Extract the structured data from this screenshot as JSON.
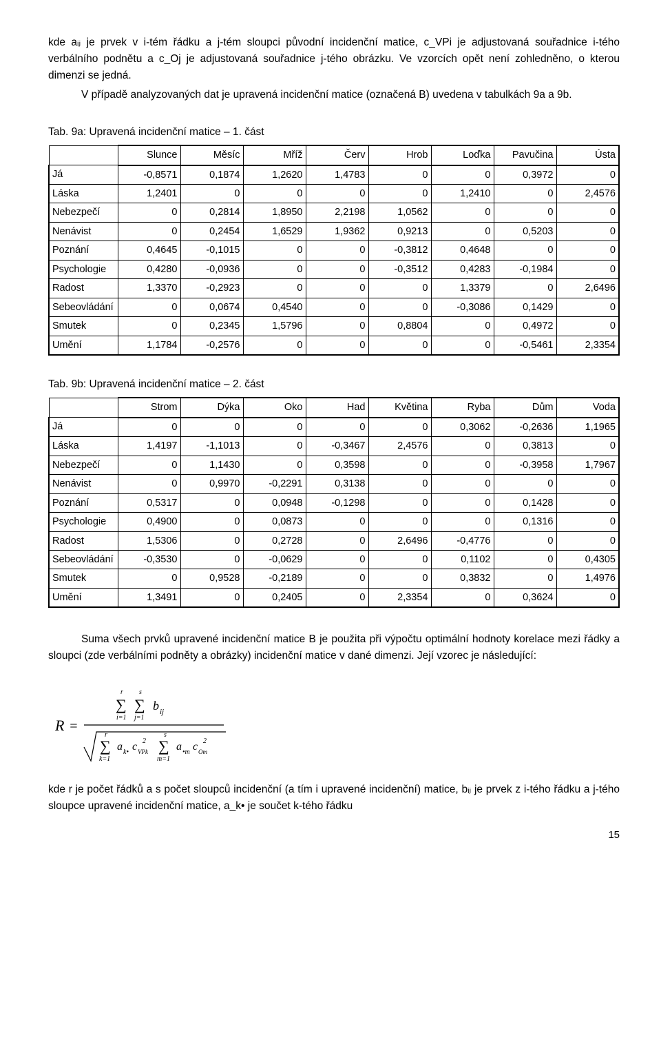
{
  "para1": "kde aᵢⱼ je prvek v i-tém řádku a j-tém sloupci původní incidenční matice, c_VPi je adjustovaná souřadnice i-tého verbálního podnětu a c_Oj je adjustovaná souřadnice j-tého obrázku. Ve vzorcích opět není zohledněno, o kterou dimenzi se jedná.",
  "para2": "V případě analyzovaných dat je upravená incidenční matice (označená B) uvedena v tabulkách 9a a 9b.",
  "tab9a_caption": "Tab. 9a: Upravená incidenční matice – 1. část",
  "tab9b_caption": "Tab. 9b: Upravená incidenční matice – 2. část",
  "tab9a": {
    "columns": [
      "Slunce",
      "Měsíc",
      "Mříž",
      "Červ",
      "Hrob",
      "Loďka",
      "Pavučina",
      "Ústa"
    ],
    "rows": [
      "Já",
      "Láska",
      "Nebezpečí",
      "Nenávist",
      "Poznání",
      "Psychologie",
      "Radost",
      "Sebeovládání",
      "Smutek",
      "Umění"
    ],
    "data": [
      [
        "-0,8571",
        "0,1874",
        "1,2620",
        "1,4783",
        "0",
        "0",
        "0,3972",
        "0"
      ],
      [
        "1,2401",
        "0",
        "0",
        "0",
        "0",
        "1,2410",
        "0",
        "2,4576"
      ],
      [
        "0",
        "0,2814",
        "1,8950",
        "2,2198",
        "1,0562",
        "0",
        "0",
        "0"
      ],
      [
        "0",
        "0,2454",
        "1,6529",
        "1,9362",
        "0,9213",
        "0",
        "0,5203",
        "0"
      ],
      [
        "0,4645",
        "-0,1015",
        "0",
        "0",
        "-0,3812",
        "0,4648",
        "0",
        "0"
      ],
      [
        "0,4280",
        "-0,0936",
        "0",
        "0",
        "-0,3512",
        "0,4283",
        "-0,1984",
        "0"
      ],
      [
        "1,3370",
        "-0,2923",
        "0",
        "0",
        "0",
        "1,3379",
        "0",
        "2,6496"
      ],
      [
        "0",
        "0,0674",
        "0,4540",
        "0",
        "0",
        "-0,3086",
        "0,1429",
        "0"
      ],
      [
        "0",
        "0,2345",
        "1,5796",
        "0",
        "0,8804",
        "0",
        "0,4972",
        "0"
      ],
      [
        "1,1784",
        "-0,2576",
        "0",
        "0",
        "0",
        "0",
        "-0,5461",
        "2,3354"
      ]
    ]
  },
  "tab9b": {
    "columns": [
      "Strom",
      "Dýka",
      "Oko",
      "Had",
      "Květina",
      "Ryba",
      "Dům",
      "Voda"
    ],
    "rows": [
      "Já",
      "Láska",
      "Nebezpečí",
      "Nenávist",
      "Poznání",
      "Psychologie",
      "Radost",
      "Sebeovládání",
      "Smutek",
      "Umění"
    ],
    "data": [
      [
        "0",
        "0",
        "0",
        "0",
        "0",
        "0,3062",
        "-0,2636",
        "1,1965"
      ],
      [
        "1,4197",
        "-1,1013",
        "0",
        "-0,3467",
        "2,4576",
        "0",
        "0,3813",
        "0"
      ],
      [
        "0",
        "1,1430",
        "0",
        "0,3598",
        "0",
        "0",
        "-0,3958",
        "1,7967"
      ],
      [
        "0",
        "0,9970",
        "-0,2291",
        "0,3138",
        "0",
        "0",
        "0",
        "0"
      ],
      [
        "0,5317",
        "0",
        "0,0948",
        "-0,1298",
        "0",
        "0",
        "0,1428",
        "0"
      ],
      [
        "0,4900",
        "0",
        "0,0873",
        "0",
        "0",
        "0",
        "0,1316",
        "0"
      ],
      [
        "1,5306",
        "0",
        "0,2728",
        "0",
        "2,6496",
        "-0,4776",
        "0",
        "0"
      ],
      [
        "-0,3530",
        "0",
        "-0,0629",
        "0",
        "0",
        "0,1102",
        "0",
        "0,4305"
      ],
      [
        "0",
        "0,9528",
        "-0,2189",
        "0",
        "0",
        "0,3832",
        "0",
        "1,4976"
      ],
      [
        "1,3491",
        "0",
        "0,2405",
        "0",
        "2,3354",
        "0",
        "0,3624",
        "0"
      ]
    ]
  },
  "para3": "Suma všech prvků upravené incidenční matice B je použita při výpočtu optimální hodnoty korelace mezi řádky a sloupci (zde verbálními podněty a obrázky) incidenční matice v dané dimenzi. Její vzorec je následující:",
  "para4": "kde r je počet řádků a s počet sloupců incidenční (a tím i upravené incidenční) matice, bᵢⱼ je prvek z i-tého řádku a j-tého sloupce upravené incidenční matice, a_k• je součet k-tého řádku",
  "page_number": "15"
}
